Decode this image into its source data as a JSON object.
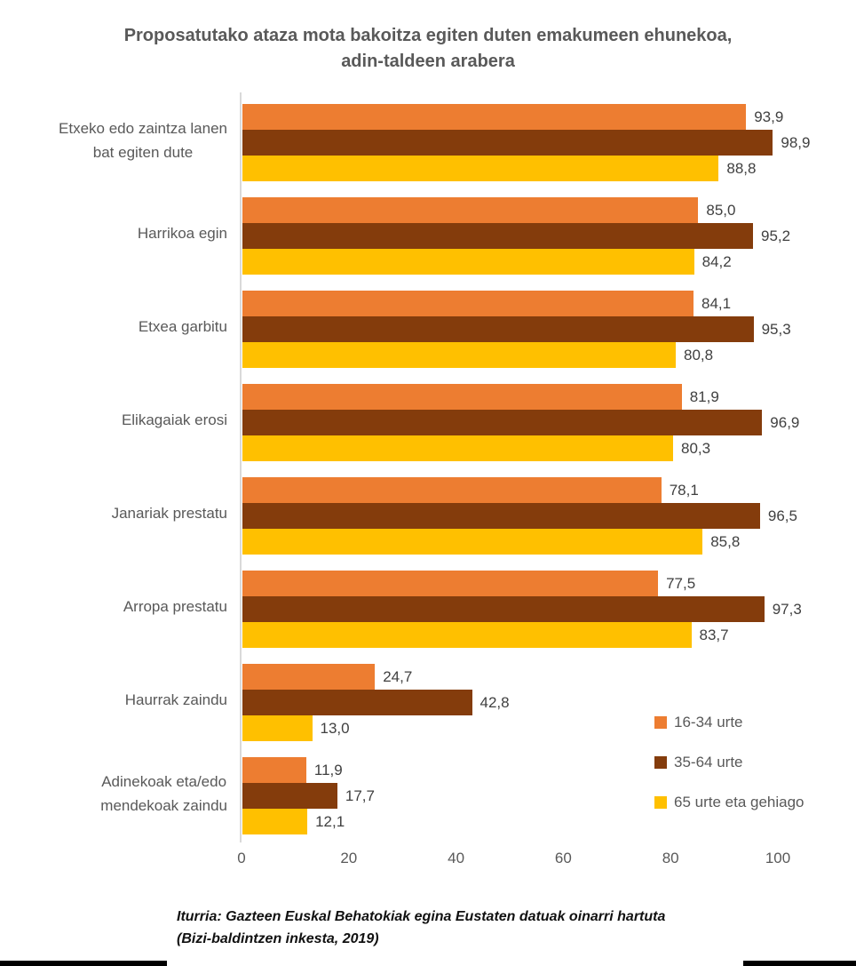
{
  "title": {
    "line1": "Proposatutako ataza mota bakoitza egiten duten emakumeen ehunekoa,",
    "line2": "adin-taldeen arabera"
  },
  "source": {
    "line1": "Iturria: Gazteen Euskal Behatokiak egina Eustaten datuak oinarri hartuta",
    "line2": "(Bizi-baldintzen inkesta, 2019)"
  },
  "chart_data": {
    "type": "bar",
    "orientation": "horizontal",
    "title": "Proposatutako ataza mota bakoitza egiten duten emakumeen ehunekoa, adin-taldeen arabera",
    "categories": [
      "Etxeko edo zaintza lanen bat egiten dute",
      "Harrikoa egin",
      "Etxea garbitu",
      "Elikagaiak erosi",
      "Janariak prestatu",
      "Arropa prestatu",
      "Haurrak zaindu",
      "Adinekoak eta/edo mendekoak zaindu"
    ],
    "category_lines": [
      [
        "Etxeko edo zaintza lanen",
        "bat egiten dute"
      ],
      [
        "Harrikoa egin"
      ],
      [
        "Etxea garbitu"
      ],
      [
        "Elikagaiak erosi"
      ],
      [
        "Janariak prestatu"
      ],
      [
        "Arropa prestatu"
      ],
      [
        "Haurrak zaindu"
      ],
      [
        "Adinekoak eta/edo",
        "mendekoak zaindu"
      ]
    ],
    "series": [
      {
        "name": "16-34 urte",
        "color": "#ED7D31",
        "values": [
          93.9,
          85.0,
          84.1,
          81.9,
          78.1,
          77.5,
          24.7,
          11.9
        ],
        "labels": [
          "93,9",
          "85,0",
          "84,1",
          "81,9",
          "78,1",
          "77,5",
          "24,7",
          "11,9"
        ]
      },
      {
        "name": "35-64 urte",
        "color": "#843C0C",
        "values": [
          98.9,
          95.2,
          95.3,
          96.9,
          96.5,
          97.3,
          42.8,
          17.7
        ],
        "labels": [
          "98,9",
          "95,2",
          "95,3",
          "96,9",
          "96,5",
          "97,3",
          "42,8",
          "17,7"
        ]
      },
      {
        "name": "65 urte eta gehiago",
        "color": "#FFC000",
        "values": [
          88.8,
          84.2,
          80.8,
          80.3,
          85.8,
          83.7,
          13.0,
          12.1
        ],
        "labels": [
          "88,8",
          "84,2",
          "80,8",
          "80,3",
          "85,8",
          "83,7",
          "13,0",
          "12,1"
        ]
      }
    ],
    "x_ticks": [
      0,
      20,
      40,
      60,
      80,
      100
    ],
    "xlim": [
      0,
      100
    ],
    "grid": false,
    "legend_position": "inside bottom-right",
    "xlabel": "",
    "ylabel": ""
  },
  "colors": {
    "series_16_34": "#ED7D31",
    "series_35_64": "#843C0C",
    "series_65_plus": "#FFC000",
    "axis_line": "#D9D9D9",
    "tick_text": "#595959",
    "category_text": "#595959",
    "value_text": "#404040",
    "title_text": "#595959",
    "source_text": "#111111",
    "frame_bar": "#000000",
    "background": "#FFFFFF"
  }
}
